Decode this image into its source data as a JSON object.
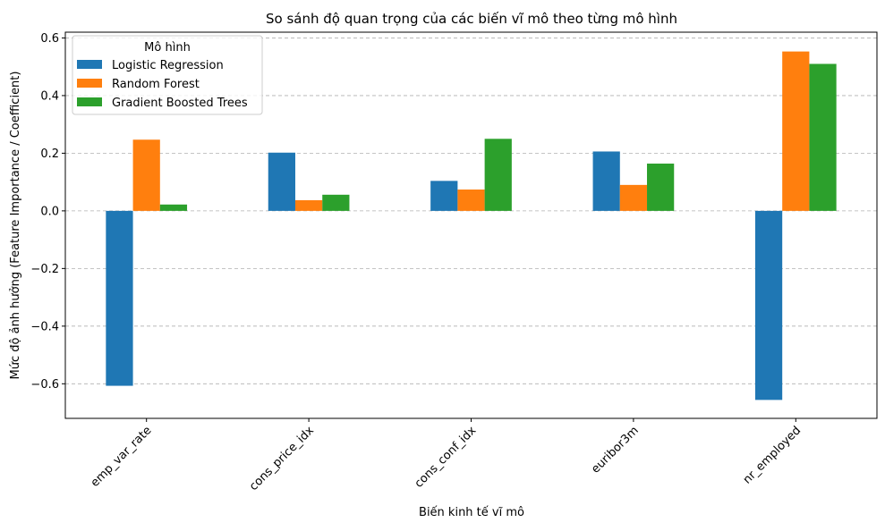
{
  "chart_data": {
    "type": "bar",
    "title": "So sánh độ quan trọng của các biến vĩ mô theo từng mô hình",
    "xlabel": "Biến kinh tế vĩ mô",
    "ylabel": "Mức độ ảnh hưởng (Feature Importance / Coefficient)",
    "categories": [
      "emp_var_rate",
      "cons_price_idx",
      "cons_conf_idx",
      "euribor3m",
      "nr_employed"
    ],
    "series": [
      {
        "name": "Logistic Regression",
        "color": "#1f77b4",
        "values": [
          -0.607,
          0.202,
          0.104,
          0.206,
          -0.656
        ]
      },
      {
        "name": "Random Forest",
        "color": "#ff7f0e",
        "values": [
          0.247,
          0.037,
          0.074,
          0.09,
          0.553
        ]
      },
      {
        "name": "Gradient Boosted Trees",
        "color": "#2ca02c",
        "values": [
          0.022,
          0.056,
          0.25,
          0.164,
          0.51
        ]
      }
    ],
    "ylim": [
      -0.72,
      0.62
    ],
    "yticks": [
      -0.6,
      -0.4,
      -0.2,
      0.0,
      0.2,
      0.4,
      0.6
    ],
    "ytick_labels": [
      "−0.6",
      "−0.4",
      "−0.2",
      "0.0",
      "0.2",
      "0.4",
      "0.6"
    ],
    "grid": "y-dashed",
    "legend": {
      "title": "Mô hình",
      "placement": "upper-left"
    },
    "xtick_rotation": 45
  }
}
